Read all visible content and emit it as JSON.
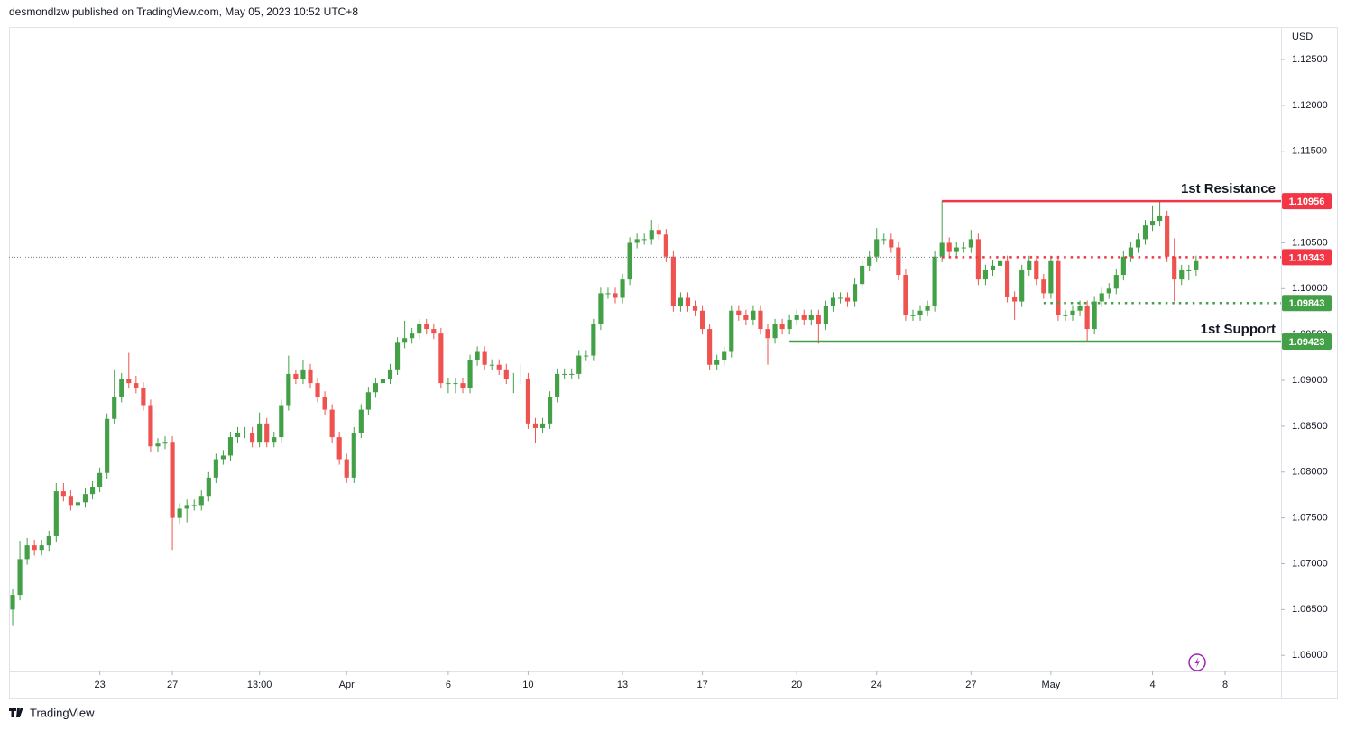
{
  "header": {
    "text": "desmondlzw published on TradingView.com, May 05, 2023 10:52 UTC+8"
  },
  "footer": {
    "brand": "TradingView"
  },
  "chart_data": {
    "type": "candlestick",
    "currency": "USD",
    "up_color": "#43a047",
    "down_color": "#ef5350",
    "ylim": [
      1.05825,
      1.12854
    ],
    "xlim": [
      -0.5,
      174.7
    ],
    "yticks": [
      {
        "value": 1.125,
        "label": "1.12500"
      },
      {
        "value": 1.12,
        "label": "1.12000"
      },
      {
        "value": 1.115,
        "label": "1.11500"
      },
      {
        "value": 1.11,
        "label": "1.11000"
      },
      {
        "value": 1.105,
        "label": "1.10500"
      },
      {
        "value": 1.1,
        "label": "1.10000"
      },
      {
        "value": 1.095,
        "label": "1.09500"
      },
      {
        "value": 1.09,
        "label": "1.09000"
      },
      {
        "value": 1.085,
        "label": "1.08500"
      },
      {
        "value": 1.08,
        "label": "1.08000"
      },
      {
        "value": 1.075,
        "label": "1.07500"
      },
      {
        "value": 1.07,
        "label": "1.07000"
      },
      {
        "value": 1.065,
        "label": "1.06500"
      },
      {
        "value": 1.06,
        "label": "1.06000"
      }
    ],
    "xticks": [
      {
        "value": 12,
        "label": "23"
      },
      {
        "value": 22,
        "label": "27"
      },
      {
        "value": 34,
        "label": "13:00"
      },
      {
        "value": 46,
        "label": "Apr"
      },
      {
        "value": 60,
        "label": "6"
      },
      {
        "value": 71,
        "label": "10"
      },
      {
        "value": 84,
        "label": "13"
      },
      {
        "value": 95,
        "label": "17"
      },
      {
        "value": 108,
        "label": "20"
      },
      {
        "value": 119,
        "label": "24"
      },
      {
        "value": 132,
        "label": "27"
      },
      {
        "value": 143,
        "label": "May"
      },
      {
        "value": 157,
        "label": "4"
      },
      {
        "value": 167,
        "label": "8"
      }
    ],
    "levels": [
      {
        "label": "1st Resistance",
        "value": 1.10956,
        "color": "#f23645",
        "style": "solid",
        "from": 128
      },
      {
        "value": 1.10343,
        "color": "#f23645",
        "style": "dotted",
        "from": 128,
        "current_price_line": true
      },
      {
        "value": 1.09843,
        "color": "#43a047",
        "style": "dotted",
        "from": 142
      },
      {
        "label": "1st Support",
        "value": 1.09423,
        "color": "#43a047",
        "style": "solid",
        "from": 107
      }
    ],
    "candles": [
      [
        1.065,
        1.0672,
        1.0632,
        1.0666
      ],
      [
        1.0666,
        1.0725,
        1.066,
        1.0705
      ],
      [
        1.0705,
        1.0728,
        1.0699,
        1.072
      ],
      [
        1.072,
        1.0726,
        1.0709,
        1.0715
      ],
      [
        1.0715,
        1.0726,
        1.0709,
        1.072
      ],
      [
        1.072,
        1.0736,
        1.0714,
        1.073
      ],
      [
        1.073,
        1.0788,
        1.0724,
        1.0779
      ],
      [
        1.0779,
        1.0788,
        1.0768,
        1.0774
      ],
      [
        1.0774,
        1.078,
        1.0758,
        1.0764
      ],
      [
        1.0764,
        1.0773,
        1.0758,
        1.0767
      ],
      [
        1.0767,
        1.0782,
        1.0761,
        1.0776
      ],
      [
        1.0776,
        1.079,
        1.077,
        1.0784
      ],
      [
        1.0784,
        1.0805,
        1.0778,
        1.0799
      ],
      [
        1.0799,
        1.0864,
        1.0793,
        1.0858
      ],
      [
        1.0858,
        1.0912,
        1.0852,
        1.0882
      ],
      [
        1.0882,
        1.0908,
        1.0876,
        1.0902
      ],
      [
        1.0902,
        1.093,
        1.0891,
        1.0897
      ],
      [
        1.0897,
        1.0905,
        1.0886,
        1.0892
      ],
      [
        1.0892,
        1.0898,
        1.0867,
        1.0873
      ],
      [
        1.0873,
        1.0879,
        1.0822,
        1.0828
      ],
      [
        1.0828,
        1.0837,
        1.0822,
        1.0831
      ],
      [
        1.0831,
        1.0839,
        1.0825,
        1.0833
      ],
      [
        1.0833,
        1.0839,
        1.0715,
        1.075
      ],
      [
        1.075,
        1.0766,
        1.0744,
        1.076
      ],
      [
        1.076,
        1.077,
        1.0745,
        1.0764
      ],
      [
        1.0764,
        1.077,
        1.0758,
        1.0764
      ],
      [
        1.0764,
        1.078,
        1.0758,
        1.0774
      ],
      [
        1.0774,
        1.08,
        1.0768,
        1.0794
      ],
      [
        1.0794,
        1.082,
        1.0788,
        1.0814
      ],
      [
        1.0814,
        1.0824,
        1.0808,
        1.0818
      ],
      [
        1.0818,
        1.0844,
        1.0812,
        1.0838
      ],
      [
        1.0838,
        1.0849,
        1.0832,
        1.0843
      ],
      [
        1.0843,
        1.0849,
        1.0837,
        1.0843
      ],
      [
        1.0843,
        1.0849,
        1.0827,
        1.0833
      ],
      [
        1.0833,
        1.0865,
        1.0827,
        1.0853
      ],
      [
        1.0853,
        1.0859,
        1.0827,
        1.0833
      ],
      [
        1.0833,
        1.0844,
        1.0827,
        1.0838
      ],
      [
        1.0838,
        1.0879,
        1.0832,
        1.0873
      ],
      [
        1.0873,
        1.0927,
        1.0867,
        1.0907
      ],
      [
        1.0907,
        1.0912,
        1.0896,
        1.0902
      ],
      [
        1.0902,
        1.0922,
        1.0896,
        1.0912
      ],
      [
        1.0912,
        1.0918,
        1.0891,
        1.0897
      ],
      [
        1.0897,
        1.0903,
        1.0876,
        1.0882
      ],
      [
        1.0882,
        1.0888,
        1.0862,
        1.0868
      ],
      [
        1.0868,
        1.0874,
        1.0832,
        1.0838
      ],
      [
        1.0838,
        1.0844,
        1.0808,
        1.0814
      ],
      [
        1.0814,
        1.082,
        1.0788,
        1.0794
      ],
      [
        1.0794,
        1.0849,
        1.0788,
        1.0843
      ],
      [
        1.0843,
        1.0874,
        1.0837,
        1.0868
      ],
      [
        1.0868,
        1.0893,
        1.0862,
        1.0887
      ],
      [
        1.0887,
        1.0903,
        1.0881,
        1.0897
      ],
      [
        1.0897,
        1.0908,
        1.0891,
        1.0902
      ],
      [
        1.0902,
        1.0918,
        1.0896,
        1.0912
      ],
      [
        1.0912,
        1.0947,
        1.0906,
        1.0941
      ],
      [
        1.0941,
        1.0965,
        1.0935,
        1.0946
      ],
      [
        1.0946,
        1.0957,
        1.094,
        1.0951
      ],
      [
        1.0951,
        1.0967,
        1.0945,
        1.0961
      ],
      [
        1.0961,
        1.0967,
        1.095,
        1.0956
      ],
      [
        1.0956,
        1.0962,
        1.0945,
        1.0951
      ],
      [
        1.0951,
        1.0957,
        1.0891,
        1.0897
      ],
      [
        1.0897,
        1.0903,
        1.0886,
        1.0897
      ],
      [
        1.0897,
        1.0903,
        1.0886,
        1.0897
      ],
      [
        1.0897,
        1.0903,
        1.0886,
        1.0892
      ],
      [
        1.0892,
        1.0928,
        1.0886,
        1.0922
      ],
      [
        1.0922,
        1.0937,
        1.0916,
        1.0931
      ],
      [
        1.0931,
        1.0937,
        1.0911,
        1.0917
      ],
      [
        1.0917,
        1.0923,
        1.0911,
        1.0917
      ],
      [
        1.0917,
        1.0923,
        1.0906,
        1.0912
      ],
      [
        1.0912,
        1.0918,
        1.0896,
        1.0902
      ],
      [
        1.0902,
        1.0908,
        1.0886,
        1.0902
      ],
      [
        1.0902,
        1.0918,
        1.0896,
        1.0902
      ],
      [
        1.0902,
        1.0908,
        1.0847,
        1.0853
      ],
      [
        1.0853,
        1.0859,
        1.0832,
        1.0848
      ],
      [
        1.0848,
        1.0859,
        1.0842,
        1.0853
      ],
      [
        1.0853,
        1.0888,
        1.0847,
        1.0882
      ],
      [
        1.0882,
        1.0913,
        1.0876,
        1.0907
      ],
      [
        1.0907,
        1.0913,
        1.0901,
        1.0907
      ],
      [
        1.0907,
        1.0913,
        1.0901,
        1.0907
      ],
      [
        1.0907,
        1.0933,
        1.0901,
        1.0927
      ],
      [
        1.0927,
        1.0933,
        1.0921,
        1.0927
      ],
      [
        1.0927,
        1.0967,
        1.0921,
        1.0961
      ],
      [
        1.0961,
        1.1001,
        1.0955,
        1.0995
      ],
      [
        1.0995,
        1.1001,
        1.0989,
        1.0995
      ],
      [
        1.0995,
        1.1001,
        1.0984,
        1.099
      ],
      [
        1.099,
        1.1016,
        1.0984,
        1.101
      ],
      [
        1.101,
        1.1056,
        1.1004,
        1.105
      ],
      [
        1.105,
        1.106,
        1.1044,
        1.1054
      ],
      [
        1.1054,
        1.106,
        1.1048,
        1.1054
      ],
      [
        1.1054,
        1.1075,
        1.1048,
        1.1064
      ],
      [
        1.1064,
        1.107,
        1.1053,
        1.1059
      ],
      [
        1.1059,
        1.1065,
        1.1029,
        1.1035
      ],
      [
        1.1035,
        1.1041,
        1.0975,
        1.0981
      ],
      [
        1.0981,
        1.0996,
        1.0975,
        1.099
      ],
      [
        1.099,
        1.0996,
        1.0975,
        1.0981
      ],
      [
        1.0981,
        1.0987,
        1.097,
        1.0976
      ],
      [
        1.0976,
        1.0982,
        1.095,
        1.0956
      ],
      [
        1.0956,
        1.0962,
        1.0911,
        1.0917
      ],
      [
        1.0917,
        1.0928,
        1.0911,
        1.0922
      ],
      [
        1.0922,
        1.0937,
        1.0916,
        1.0931
      ],
      [
        1.0931,
        1.0982,
        1.0925,
        1.0976
      ],
      [
        1.0976,
        1.0982,
        1.0965,
        1.0971
      ],
      [
        1.0971,
        1.0977,
        1.096,
        1.0966
      ],
      [
        1.0966,
        1.0982,
        1.096,
        1.0976
      ],
      [
        1.0976,
        1.0982,
        1.095,
        1.0956
      ],
      [
        1.0956,
        1.0962,
        1.0917,
        1.0946
      ],
      [
        1.0946,
        1.0967,
        1.094,
        1.0961
      ],
      [
        1.0961,
        1.0967,
        1.095,
        1.0956
      ],
      [
        1.0956,
        1.0972,
        1.095,
        1.0966
      ],
      [
        1.0966,
        1.0977,
        1.096,
        1.0971
      ],
      [
        1.0971,
        1.0977,
        1.096,
        1.0966
      ],
      [
        1.0966,
        1.0977,
        1.096,
        1.0971
      ],
      [
        1.0971,
        1.0977,
        1.094,
        1.0961
      ],
      [
        1.0961,
        1.0987,
        1.0955,
        1.0981
      ],
      [
        1.0981,
        1.0996,
        1.0975,
        1.099
      ],
      [
        1.099,
        1.0996,
        1.0984,
        1.099
      ],
      [
        1.099,
        1.0996,
        1.098,
        1.0986
      ],
      [
        1.0986,
        1.1011,
        1.098,
        1.1005
      ],
      [
        1.1005,
        1.1031,
        1.0999,
        1.1025
      ],
      [
        1.1025,
        1.1041,
        1.1019,
        1.1035
      ],
      [
        1.1035,
        1.1066,
        1.1029,
        1.1054
      ],
      [
        1.1054,
        1.106,
        1.1048,
        1.1054
      ],
      [
        1.1054,
        1.106,
        1.1039,
        1.1045
      ],
      [
        1.1045,
        1.1051,
        1.1009,
        1.1015
      ],
      [
        1.1015,
        1.1021,
        1.0965,
        1.0971
      ],
      [
        1.0971,
        1.0977,
        1.0965,
        1.0971
      ],
      [
        1.0971,
        1.0982,
        1.0965,
        1.0976
      ],
      [
        1.0976,
        1.0987,
        1.097,
        1.0981
      ],
      [
        1.0981,
        1.1041,
        1.0975,
        1.1035
      ],
      [
        1.1035,
        1.1096,
        1.1029,
        1.105
      ],
      [
        1.105,
        1.1056,
        1.1034,
        1.104
      ],
      [
        1.104,
        1.1051,
        1.1034,
        1.1045
      ],
      [
        1.1045,
        1.1051,
        1.1039,
        1.1045
      ],
      [
        1.1045,
        1.1064,
        1.1039,
        1.1054
      ],
      [
        1.1054,
        1.106,
        1.1004,
        1.101
      ],
      [
        1.101,
        1.1026,
        1.1004,
        1.102
      ],
      [
        1.102,
        1.1031,
        1.1014,
        1.1025
      ],
      [
        1.1025,
        1.1036,
        1.1019,
        1.103
      ],
      [
        1.103,
        1.1036,
        1.0985,
        1.0991
      ],
      [
        1.0991,
        1.0997,
        1.0966,
        1.0986
      ],
      [
        1.0986,
        1.1026,
        1.098,
        1.102
      ],
      [
        1.102,
        1.1036,
        1.1014,
        1.103
      ],
      [
        1.103,
        1.1036,
        1.1004,
        1.101
      ],
      [
        1.101,
        1.1016,
        1.0989,
        1.0995
      ],
      [
        1.0995,
        1.1036,
        1.0989,
        1.103
      ],
      [
        1.103,
        1.1036,
        1.0965,
        1.0971
      ],
      [
        1.0971,
        1.0977,
        1.0965,
        1.0971
      ],
      [
        1.0971,
        1.0982,
        1.0965,
        1.0976
      ],
      [
        1.0976,
        1.0987,
        1.097,
        1.0981
      ],
      [
        1.0981,
        1.0987,
        1.0942,
        1.0956
      ],
      [
        1.0956,
        1.0992,
        1.095,
        1.0986
      ],
      [
        1.0986,
        1.1001,
        1.098,
        1.0995
      ],
      [
        1.0995,
        1.1006,
        1.0989,
        1.1
      ],
      [
        1.1,
        1.1021,
        1.0994,
        1.1015
      ],
      [
        1.1015,
        1.1041,
        1.1009,
        1.1035
      ],
      [
        1.1035,
        1.1051,
        1.1029,
        1.1045
      ],
      [
        1.1045,
        1.106,
        1.1039,
        1.1054
      ],
      [
        1.1054,
        1.1075,
        1.1048,
        1.1069
      ],
      [
        1.1069,
        1.109,
        1.1063,
        1.1074
      ],
      [
        1.1074,
        1.1096,
        1.1068,
        1.1079
      ],
      [
        1.1079,
        1.1085,
        1.1029,
        1.1035
      ],
      [
        1.1035,
        1.1055,
        1.0986,
        1.101
      ],
      [
        1.101,
        1.1026,
        1.1004,
        1.102
      ],
      [
        1.102,
        1.1026,
        1.1009,
        1.102
      ],
      [
        1.102,
        1.1036,
        1.1014,
        1.103
      ]
    ]
  }
}
